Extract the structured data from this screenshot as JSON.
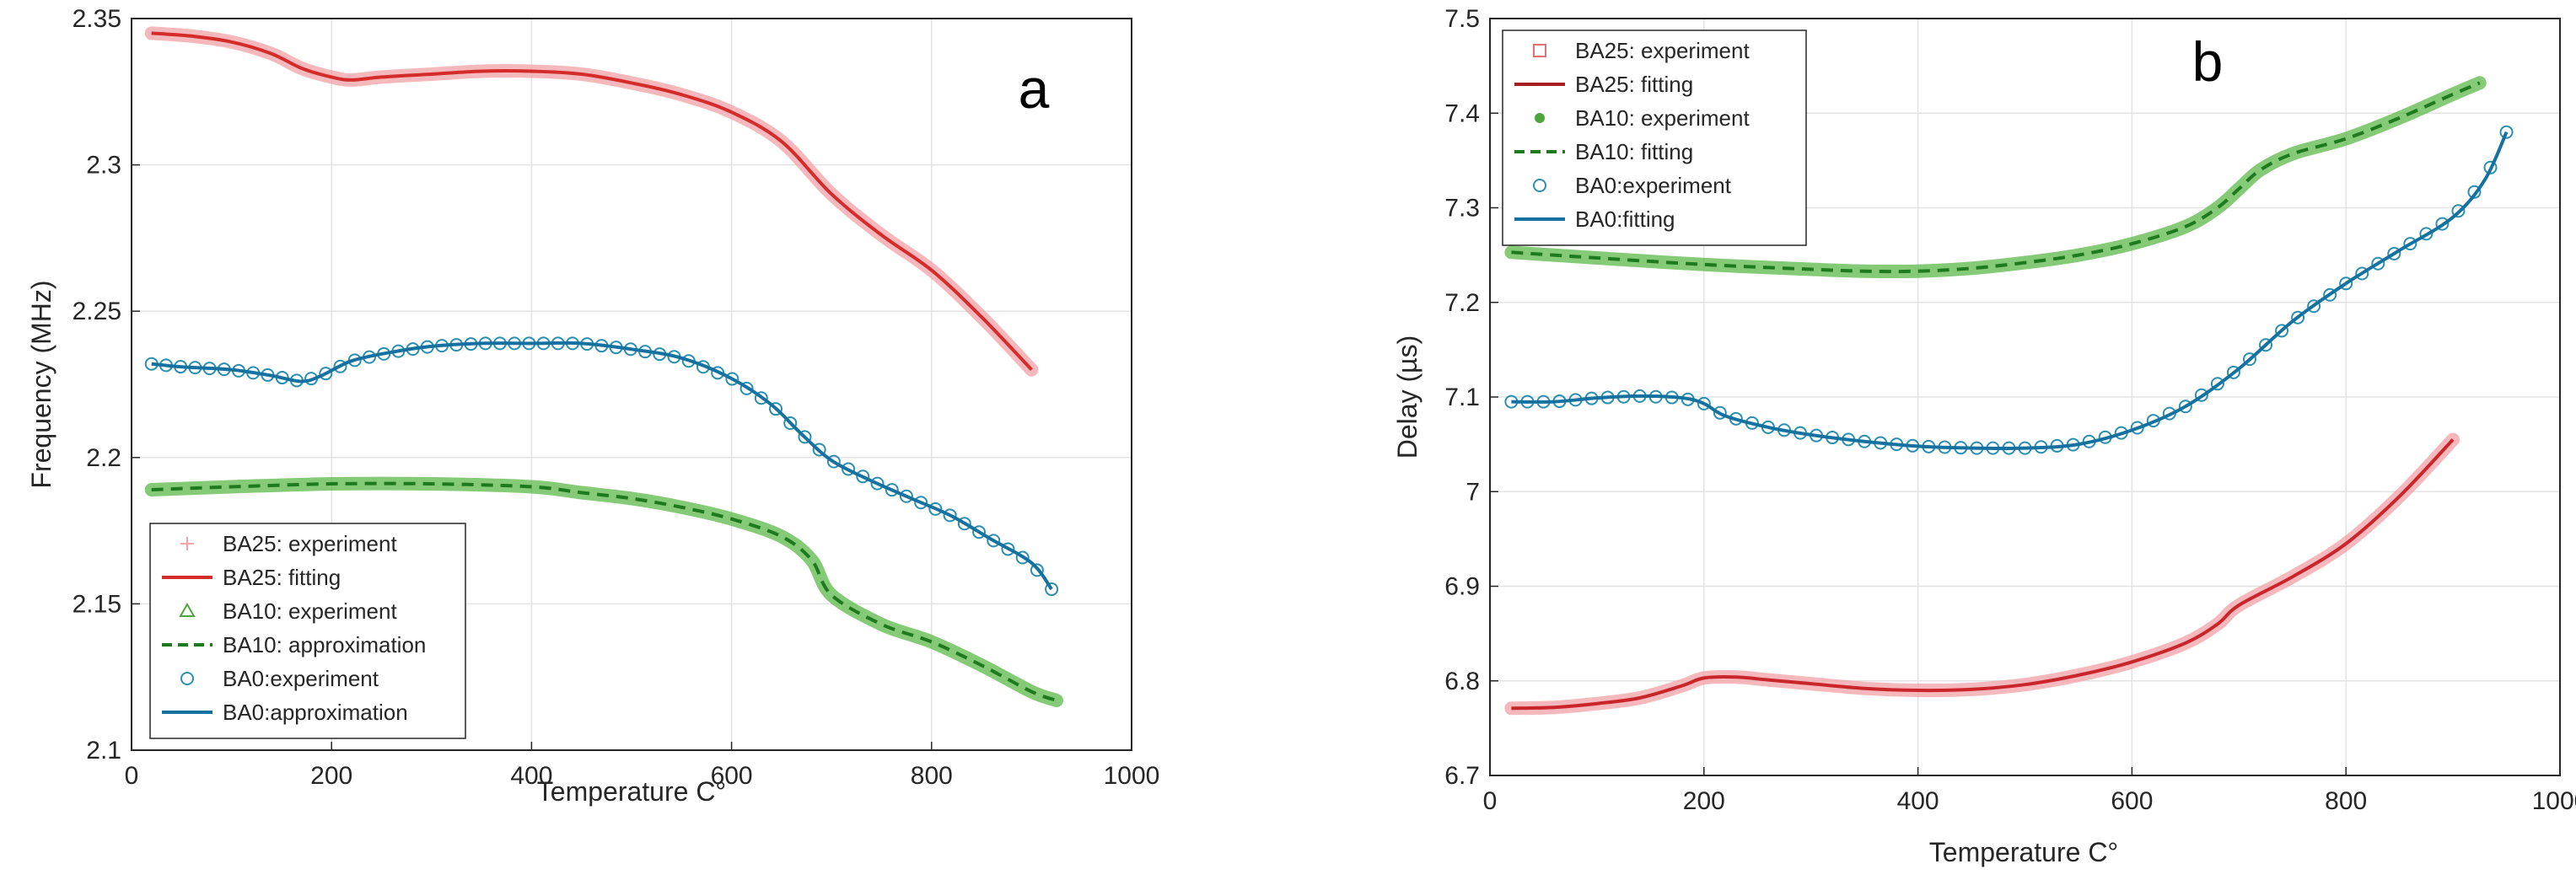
{
  "chart_data": [
    {
      "type": "line",
      "panel_label": "a",
      "xlabel": "Temperature C°",
      "ylabel": "Frequency (MHz)",
      "xlim": [
        0,
        1000
      ],
      "ylim": [
        2.1,
        2.35
      ],
      "xticks": [
        0,
        200,
        400,
        600,
        800,
        1000
      ],
      "yticks": [
        2.1,
        2.15,
        2.2,
        2.25,
        2.3,
        2.35
      ],
      "xtick_labels": [
        "0",
        "200",
        "400",
        "600",
        "800",
        "1000"
      ],
      "ytick_labels": [
        "2.1",
        "2.15",
        "2.2",
        "2.25",
        "2.3",
        "2.35"
      ],
      "grid": true,
      "legend_position": "bottom-left",
      "legend": [
        {
          "label": "BA25: experiment",
          "style": "marker",
          "marker": "plus",
          "color": "#f4a3a8"
        },
        {
          "label": "BA25: fitting",
          "style": "solid",
          "color": "#d42b2b"
        },
        {
          "label": "BA10: experiment",
          "style": "marker",
          "marker": "triangle",
          "color": "#4ca63c"
        },
        {
          "label": "BA10: approximation",
          "style": "dashed",
          "color": "#1f7a1f"
        },
        {
          "label": "BA0:experiment",
          "style": "marker",
          "marker": "circle",
          "color": "#2a8fb0"
        },
        {
          "label": "BA0:approximation",
          "style": "solid",
          "color": "#1572a0"
        }
      ],
      "series": [
        {
          "name": "BA25",
          "exp_color": "#f2a0a6",
          "fit_color": "#d42b2b",
          "fit_style": "solid",
          "marker": "thick",
          "x": [
            20,
            60,
            100,
            140,
            170,
            200,
            220,
            250,
            300,
            350,
            400,
            450,
            500,
            550,
            600,
            650,
            700,
            750,
            800,
            850,
            900
          ],
          "y": [
            2.345,
            2.344,
            2.342,
            2.338,
            2.333,
            2.33,
            2.329,
            2.33,
            2.331,
            2.332,
            2.332,
            2.331,
            2.328,
            2.324,
            2.318,
            2.308,
            2.29,
            2.276,
            2.264,
            2.248,
            2.23
          ]
        },
        {
          "name": "BA10",
          "exp_color": "#5cb848",
          "fit_color": "#1f7a1f",
          "fit_style": "dashed",
          "marker": "thick",
          "x": [
            20,
            100,
            200,
            300,
            400,
            450,
            500,
            550,
            600,
            650,
            680,
            700,
            750,
            800,
            850,
            900,
            925
          ],
          "y": [
            2.189,
            2.19,
            2.191,
            2.191,
            2.19,
            2.188,
            2.186,
            2.183,
            2.179,
            2.173,
            2.165,
            2.153,
            2.143,
            2.137,
            2.129,
            2.12,
            2.117
          ]
        },
        {
          "name": "BA0",
          "exp_color": "#2a8fb0",
          "fit_color": "#1572a0",
          "fit_style": "solid",
          "marker": "circle",
          "x": [
            20,
            50,
            100,
            140,
            170,
            190,
            220,
            260,
            300,
            350,
            400,
            450,
            500,
            550,
            600,
            640,
            670,
            700,
            740,
            780,
            820,
            860,
            900,
            920
          ],
          "y": [
            2.232,
            2.231,
            2.23,
            2.228,
            2.226,
            2.228,
            2.233,
            2.236,
            2.238,
            2.239,
            2.239,
            2.239,
            2.237,
            2.234,
            2.227,
            2.218,
            2.208,
            2.199,
            2.192,
            2.186,
            2.18,
            2.172,
            2.164,
            2.155
          ]
        }
      ]
    },
    {
      "type": "line",
      "panel_label": "b",
      "xlabel": "Temperature C°",
      "ylabel": "Delay (µs)",
      "xlim": [
        0,
        1000
      ],
      "ylim": [
        6.7,
        7.5
      ],
      "xticks": [
        0,
        200,
        400,
        600,
        800,
        1000
      ],
      "yticks": [
        6.7,
        6.8,
        6.9,
        7.0,
        7.1,
        7.2,
        7.3,
        7.4,
        7.5
      ],
      "xtick_labels": [
        "0",
        "200",
        "400",
        "600",
        "800",
        "1000"
      ],
      "ytick_labels": [
        "6.7",
        "6.8",
        "6.9",
        "7",
        "7.1",
        "7.2",
        "7.3",
        "7.4",
        "7.5"
      ],
      "grid": true,
      "legend_position": "top-left",
      "legend": [
        {
          "label": "BA25: experiment",
          "style": "marker",
          "marker": "square",
          "color": "#e6707a"
        },
        {
          "label": "BA25: fitting",
          "style": "solid",
          "color": "#a51e22"
        },
        {
          "label": "BA10: experiment",
          "style": "marker",
          "marker": "dot",
          "color": "#4ca63c"
        },
        {
          "label": "BA10: fitting",
          "style": "dashed",
          "color": "#1f7a1f"
        },
        {
          "label": "BA0:experiment",
          "style": "marker",
          "marker": "circle",
          "color": "#2a8fb0"
        },
        {
          "label": "BA0:fitting",
          "style": "solid",
          "color": "#1572a0"
        }
      ],
      "series": [
        {
          "name": "BA25",
          "exp_color": "#f2a0a6",
          "fit_color": "#c9262b",
          "fit_style": "solid",
          "marker": "thick",
          "x": [
            20,
            60,
            100,
            140,
            180,
            200,
            230,
            260,
            300,
            350,
            400,
            450,
            500,
            550,
            600,
            650,
            680,
            700,
            750,
            800,
            850,
            900
          ],
          "y": [
            6.771,
            6.772,
            6.776,
            6.782,
            6.795,
            6.803,
            6.804,
            6.801,
            6.797,
            6.792,
            6.79,
            6.791,
            6.796,
            6.806,
            6.82,
            6.84,
            6.86,
            6.88,
            6.91,
            6.945,
            6.995,
            7.055
          ]
        },
        {
          "name": "BA10",
          "exp_color": "#5cb848",
          "fit_color": "#1f7a1f",
          "fit_style": "dashed",
          "marker": "thick",
          "x": [
            20,
            100,
            200,
            300,
            350,
            400,
            450,
            500,
            550,
            600,
            650,
            680,
            700,
            720,
            750,
            800,
            850,
            900,
            925
          ],
          "y": [
            7.253,
            7.247,
            7.24,
            7.235,
            7.233,
            7.233,
            7.236,
            7.242,
            7.25,
            7.262,
            7.28,
            7.3,
            7.32,
            7.34,
            7.357,
            7.373,
            7.395,
            7.42,
            7.432
          ]
        },
        {
          "name": "BA0",
          "exp_color": "#2a8fb0",
          "fit_color": "#1572a0",
          "fit_style": "solid",
          "marker": "circle",
          "x": [
            20,
            60,
            100,
            140,
            180,
            200,
            220,
            260,
            300,
            350,
            400,
            450,
            500,
            550,
            600,
            650,
            700,
            750,
            800,
            850,
            900,
            930,
            950
          ],
          "y": [
            7.095,
            7.095,
            7.099,
            7.101,
            7.099,
            7.093,
            7.08,
            7.068,
            7.06,
            7.053,
            7.048,
            7.046,
            7.046,
            7.05,
            7.065,
            7.09,
            7.13,
            7.18,
            7.22,
            7.255,
            7.29,
            7.33,
            7.38
          ]
        }
      ]
    }
  ]
}
